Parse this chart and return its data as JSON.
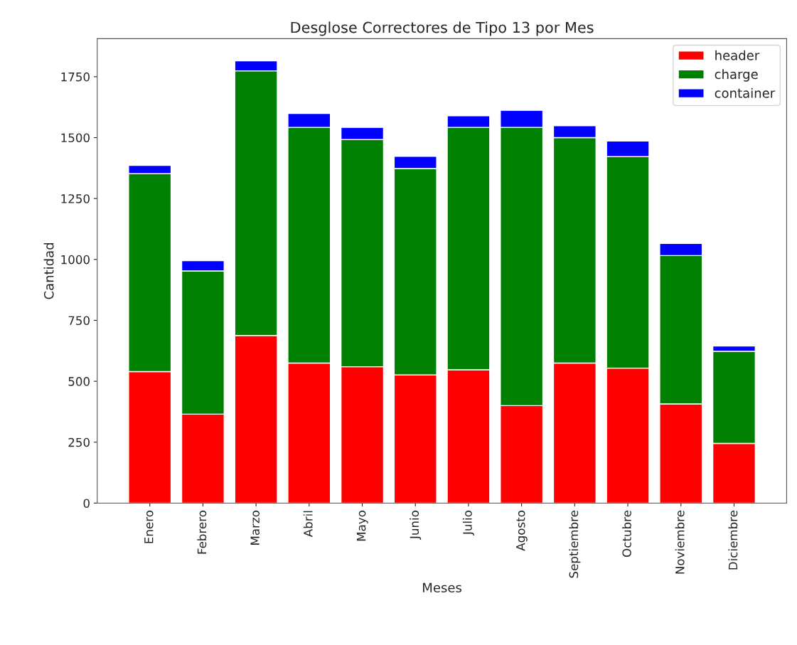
{
  "chart_data": {
    "type": "bar",
    "title": "Desglose Correctores de Tipo 13 por Mes",
    "xlabel": "Meses",
    "ylabel": "Cantidad",
    "categories": [
      "Enero",
      "Febrero",
      "Marzo",
      "Abril",
      "Mayo",
      "Junio",
      "Julio",
      "Agosto",
      "Septiembre",
      "Octubre",
      "Noviembre",
      "Diciembre"
    ],
    "stacked": true,
    "series": [
      {
        "name": "header",
        "color": "#ff0000",
        "values": [
          540,
          365,
          688,
          575,
          560,
          526,
          547,
          400,
          575,
          554,
          407,
          245
        ]
      },
      {
        "name": "charge",
        "color": "#008000",
        "values": [
          812,
          588,
          1086,
          967,
          932,
          847,
          995,
          1142,
          925,
          868,
          609,
          378
        ]
      },
      {
        "name": "container",
        "color": "#0000ff",
        "values": [
          34,
          42,
          41,
          57,
          50,
          50,
          48,
          70,
          49,
          64,
          50,
          22
        ]
      }
    ],
    "ylim": [
      0,
      1906
    ],
    "yticks": [
      0,
      250,
      500,
      750,
      1000,
      1250,
      1500,
      1750
    ],
    "legend": "top right",
    "grid": false
  }
}
